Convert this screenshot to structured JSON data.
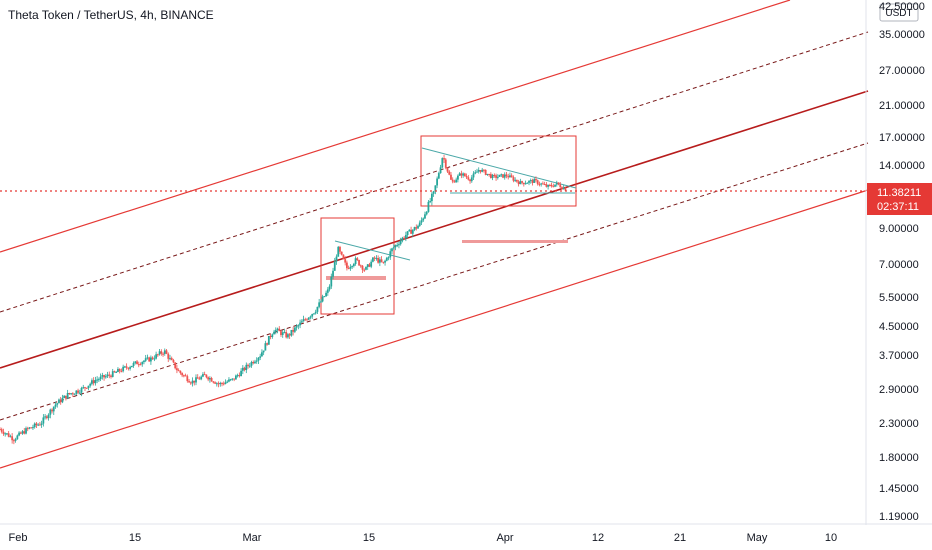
{
  "chart_data": {
    "type": "candlestick",
    "title": "Theta Token / TetherUS, 4h, BINANCE",
    "currency": "USDT",
    "y_axis": {
      "scale": "log",
      "ticks": [
        "42.50000",
        "35.00000",
        "27.00000",
        "21.00000",
        "17.00000",
        "14.00000",
        "11.00000",
        "9.00000",
        "7.00000",
        "5.50000",
        "4.50000",
        "3.70000",
        "2.90000",
        "2.30000",
        "1.80000",
        "1.45000",
        "1.19000"
      ],
      "range": [
        1.19,
        42.5
      ]
    },
    "x_axis": {
      "ticks": [
        "Feb",
        "15",
        "Mar",
        "15",
        "Apr",
        "12",
        "21",
        "May",
        "10"
      ]
    },
    "last_price": {
      "value": "11.38211",
      "countdown": "02:37:11"
    },
    "price_path": [
      {
        "t": 0.0,
        "p": 2.2
      },
      {
        "t": 1.5,
        "p": 2.05
      },
      {
        "t": 3.0,
        "p": 2.2
      },
      {
        "t": 4.5,
        "p": 2.3
      },
      {
        "t": 6.0,
        "p": 2.6
      },
      {
        "t": 7.5,
        "p": 2.8
      },
      {
        "t": 9.0,
        "p": 2.9
      },
      {
        "t": 10.5,
        "p": 3.1
      },
      {
        "t": 12.0,
        "p": 3.2
      },
      {
        "t": 13.5,
        "p": 3.35
      },
      {
        "t": 15.0,
        "p": 3.5
      },
      {
        "t": 16.5,
        "p": 3.6
      },
      {
        "t": 18.0,
        "p": 3.8
      },
      {
        "t": 19.5,
        "p": 3.3
      },
      {
        "t": 21.0,
        "p": 3.05
      },
      {
        "t": 22.5,
        "p": 3.2
      },
      {
        "t": 24.0,
        "p": 3.0
      },
      {
        "t": 25.5,
        "p": 3.1
      },
      {
        "t": 27.0,
        "p": 3.4
      },
      {
        "t": 28.5,
        "p": 3.7
      },
      {
        "t": 30.0,
        "p": 4.4
      },
      {
        "t": 31.5,
        "p": 4.2
      },
      {
        "t": 33.0,
        "p": 4.6
      },
      {
        "t": 34.5,
        "p": 5.0
      },
      {
        "t": 36.0,
        "p": 5.8
      },
      {
        "t": 37.0,
        "p": 7.8
      },
      {
        "t": 38.0,
        "p": 6.8
      },
      {
        "t": 39.0,
        "p": 7.2
      },
      {
        "t": 40.0,
        "p": 6.7
      },
      {
        "t": 41.0,
        "p": 7.3
      },
      {
        "t": 42.0,
        "p": 7.0
      },
      {
        "t": 43.0,
        "p": 7.8
      },
      {
        "t": 44.5,
        "p": 8.6
      },
      {
        "t": 46.0,
        "p": 9.2
      },
      {
        "t": 47.5,
        "p": 11.0
      },
      {
        "t": 48.5,
        "p": 15.0
      },
      {
        "t": 49.5,
        "p": 12.0
      },
      {
        "t": 50.5,
        "p": 13.0
      },
      {
        "t": 51.5,
        "p": 12.4
      },
      {
        "t": 52.5,
        "p": 13.5
      },
      {
        "t": 54.0,
        "p": 12.6
      },
      {
        "t": 55.5,
        "p": 12.8
      },
      {
        "t": 57.0,
        "p": 12.0
      },
      {
        "t": 58.5,
        "p": 12.2
      },
      {
        "t": 60.0,
        "p": 11.6
      },
      {
        "t": 61.0,
        "p": 11.9
      },
      {
        "t": 62.0,
        "p": 11.38
      }
    ],
    "drawings": {
      "channel": "parallel channel, solid outer bounds, dashed quarter lines, dark-red median",
      "pattern_1": "rising triangle box around early-March consolidation",
      "pattern_2": "descending triangle box around late-March consolidation"
    },
    "colors": {
      "up": "#26a69a",
      "down": "#ef5350",
      "channel": "#e53935",
      "median": "#b71c1c",
      "trendline": "#4ba8a8",
      "box": "#e53935",
      "zone": "#ef9a9a",
      "last_price_bg": "#e53935",
      "last_price_line": "#e53935"
    }
  }
}
